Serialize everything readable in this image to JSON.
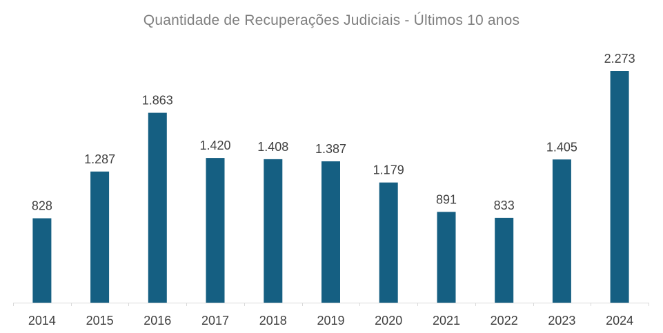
{
  "chart_data": {
    "type": "bar",
    "title": "Quantidade de Recuperações Judiciais - Últimos 10 anos",
    "xlabel": "",
    "ylabel": "",
    "categories": [
      "2014",
      "2015",
      "2016",
      "2017",
      "2018",
      "2019",
      "2020",
      "2021",
      "2022",
      "2023",
      "2024"
    ],
    "values": [
      828,
      1287,
      1863,
      1420,
      1408,
      1387,
      1179,
      891,
      833,
      1405,
      2273
    ],
    "value_labels": [
      "828",
      "1.287",
      "1.863",
      "1.420",
      "1.408",
      "1.387",
      "1.179",
      "891",
      "833",
      "1.405",
      "2.273"
    ],
    "ylim": [
      0,
      2273
    ],
    "grid": false,
    "legend": "none",
    "colors": {
      "bar": "#155f82",
      "axis": "#d9d9d9",
      "title": "#7f7f7f",
      "label": "#404040"
    }
  }
}
